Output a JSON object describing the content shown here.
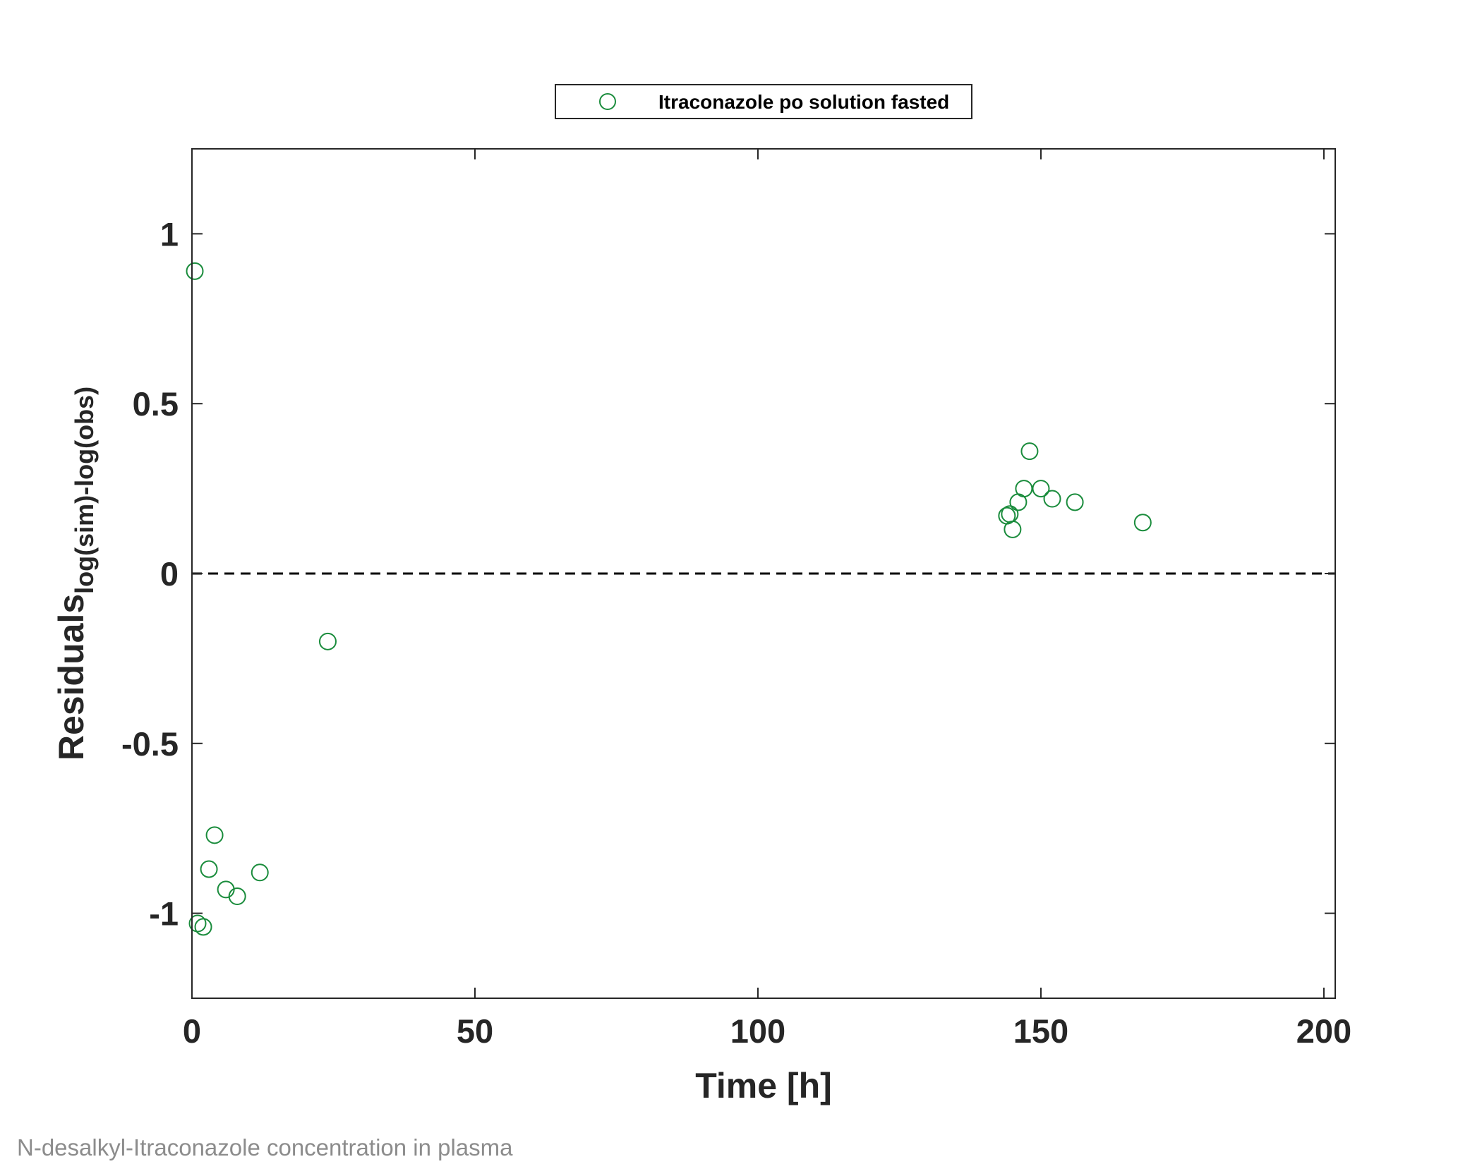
{
  "caption": "N-desalkyl-Itraconazole concentration in plasma",
  "chart_data": {
    "type": "scatter",
    "title": "",
    "xlabel": "Time [h]",
    "ylabel": "Residuals",
    "ylabel_subscript": "log(sim)-log(obs)",
    "xlim": [
      0,
      202
    ],
    "ylim": [
      -1.25,
      1.25
    ],
    "xticks": [
      0,
      50,
      100,
      150,
      200
    ],
    "yticks": [
      -1,
      -0.5,
      0,
      0.5,
      1
    ],
    "xtick_labels": [
      "0",
      "50",
      "100",
      "150",
      "200"
    ],
    "ytick_labels": [
      "-1",
      "-0.5",
      "0",
      "0.5",
      "1"
    ],
    "grid": false,
    "legend_position": "top-center, outside plot",
    "reference_line": {
      "y": 0,
      "style": "dashed",
      "color": "#000000"
    },
    "series": [
      {
        "name": "Itraconazole po solution fasted",
        "color": "#1a8c3c",
        "marker": "open-circle",
        "x": [
          0.5,
          1,
          2,
          3,
          4,
          6,
          8,
          12,
          24,
          144,
          144.5,
          145,
          146,
          147,
          148,
          150,
          152,
          156,
          168
        ],
        "y": [
          0.89,
          -1.03,
          -1.04,
          -0.87,
          -0.77,
          -0.93,
          -0.95,
          -0.88,
          -0.2,
          0.17,
          0.175,
          0.13,
          0.21,
          0.25,
          0.36,
          0.25,
          0.22,
          0.21,
          0.15
        ]
      }
    ]
  }
}
